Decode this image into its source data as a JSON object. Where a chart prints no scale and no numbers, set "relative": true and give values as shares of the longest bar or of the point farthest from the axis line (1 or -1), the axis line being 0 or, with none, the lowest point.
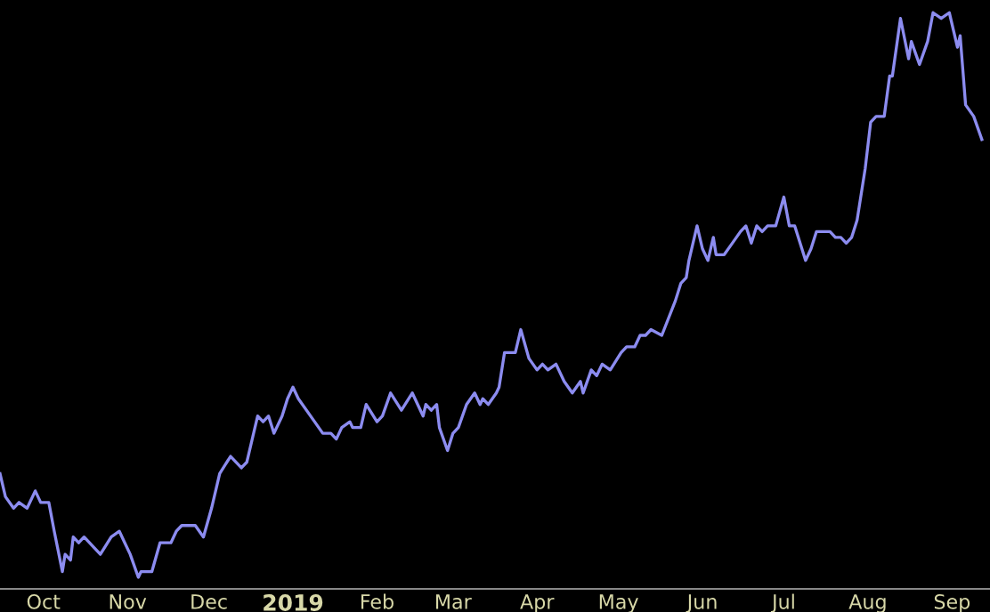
{
  "chart_data": {
    "type": "line",
    "relative": true,
    "grid": false,
    "legend": false,
    "xlim": [
      "2018-09-15",
      "2019-09-15"
    ],
    "xticks": [
      {
        "value": "2018-10-01",
        "label": "Oct"
      },
      {
        "value": "2018-11-01",
        "label": "Nov"
      },
      {
        "value": "2018-12-01",
        "label": "Dec"
      },
      {
        "value": "2019-01-01",
        "label": "2019"
      },
      {
        "value": "2019-02-01",
        "label": "Feb"
      },
      {
        "value": "2019-03-01",
        "label": "Mar"
      },
      {
        "value": "2019-04-01",
        "label": "Apr"
      },
      {
        "value": "2019-05-01",
        "label": "May"
      },
      {
        "value": "2019-06-01",
        "label": "Jun"
      },
      {
        "value": "2019-07-01",
        "label": "Jul"
      },
      {
        "value": "2019-08-01",
        "label": "Aug"
      },
      {
        "value": "2019-09-01",
        "label": "Sep"
      }
    ],
    "x": [
      "2018-09-15",
      "2018-09-17",
      "2018-09-20",
      "2018-09-22",
      "2018-09-25",
      "2018-09-28",
      "2018-09-30",
      "2018-10-03",
      "2018-10-05",
      "2018-10-08",
      "2018-10-09",
      "2018-10-11",
      "2018-10-12",
      "2018-10-14",
      "2018-10-16",
      "2018-10-20",
      "2018-10-22",
      "2018-10-26",
      "2018-10-29",
      "2018-10-31",
      "2018-11-02",
      "2018-11-05",
      "2018-11-06",
      "2018-11-10",
      "2018-11-13",
      "2018-11-17",
      "2018-11-19",
      "2018-11-21",
      "2018-11-26",
      "2018-11-29",
      "2018-12-02",
      "2018-12-05",
      "2018-12-09",
      "2018-12-13",
      "2018-12-15",
      "2018-12-19",
      "2018-12-21",
      "2018-12-23",
      "2018-12-25",
      "2018-12-28",
      "2018-12-30",
      "2019-01-01",
      "2019-01-03",
      "2019-01-09",
      "2019-01-12",
      "2019-01-15",
      "2019-01-17",
      "2019-01-19",
      "2019-01-22",
      "2019-01-23",
      "2019-01-26",
      "2019-01-28",
      "2019-02-01",
      "2019-02-03",
      "2019-02-06",
      "2019-02-10",
      "2019-02-14",
      "2019-02-18",
      "2019-02-19",
      "2019-02-21",
      "2019-02-23",
      "2019-02-24",
      "2019-02-27",
      "2019-03-01",
      "2019-03-03",
      "2019-03-06",
      "2019-03-09",
      "2019-03-11",
      "2019-03-12",
      "2019-03-14",
      "2019-03-17",
      "2019-03-18",
      "2019-03-20",
      "2019-03-24",
      "2019-03-26",
      "2019-03-29",
      "2019-04-01",
      "2019-04-03",
      "2019-04-05",
      "2019-04-08",
      "2019-04-11",
      "2019-04-14",
      "2019-04-17",
      "2019-04-18",
      "2019-04-21",
      "2019-04-23",
      "2019-04-25",
      "2019-04-28",
      "2019-05-02",
      "2019-05-04",
      "2019-05-07",
      "2019-05-09",
      "2019-05-11",
      "2019-05-13",
      "2019-05-17",
      "2019-05-22",
      "2019-05-24",
      "2019-05-26",
      "2019-05-27",
      "2019-05-30",
      "2019-06-01",
      "2019-06-03",
      "2019-06-05",
      "2019-06-06",
      "2019-06-09",
      "2019-06-12",
      "2019-06-15",
      "2019-06-17",
      "2019-06-19",
      "2019-06-21",
      "2019-06-23",
      "2019-06-25",
      "2019-06-28",
      "2019-07-01",
      "2019-07-03",
      "2019-07-05",
      "2019-07-09",
      "2019-07-11",
      "2019-07-13",
      "2019-07-16",
      "2019-07-18",
      "2019-07-20",
      "2019-07-22",
      "2019-07-24",
      "2019-07-26",
      "2019-07-28",
      "2019-07-31",
      "2019-08-02",
      "2019-08-04",
      "2019-08-07",
      "2019-08-09",
      "2019-08-10",
      "2019-08-13",
      "2019-08-16",
      "2019-08-17",
      "2019-08-20",
      "2019-08-23",
      "2019-08-25",
      "2019-08-28",
      "2019-08-31",
      "2019-09-03",
      "2019-09-04",
      "2019-09-06",
      "2019-09-09",
      "2019-09-12"
    ],
    "series": [
      {
        "color": "#8c8cf0",
        "values": [
          0.2,
          0.16,
          0.14,
          0.15,
          0.14,
          0.17,
          0.15,
          0.15,
          0.1,
          0.03,
          0.06,
          0.05,
          0.09,
          0.08,
          0.09,
          0.07,
          0.06,
          0.09,
          0.1,
          0.08,
          0.06,
          0.02,
          0.03,
          0.03,
          0.08,
          0.08,
          0.1,
          0.11,
          0.11,
          0.09,
          0.14,
          0.2,
          0.23,
          0.21,
          0.22,
          0.3,
          0.29,
          0.3,
          0.27,
          0.3,
          0.33,
          0.35,
          0.33,
          0.29,
          0.27,
          0.27,
          0.26,
          0.28,
          0.29,
          0.28,
          0.28,
          0.32,
          0.29,
          0.3,
          0.34,
          0.31,
          0.34,
          0.3,
          0.32,
          0.31,
          0.32,
          0.28,
          0.24,
          0.27,
          0.28,
          0.32,
          0.34,
          0.32,
          0.33,
          0.32,
          0.34,
          0.35,
          0.41,
          0.41,
          0.45,
          0.4,
          0.38,
          0.39,
          0.38,
          0.39,
          0.36,
          0.34,
          0.36,
          0.34,
          0.38,
          0.37,
          0.39,
          0.38,
          0.41,
          0.42,
          0.42,
          0.44,
          0.44,
          0.45,
          0.44,
          0.5,
          0.53,
          0.54,
          0.57,
          0.63,
          0.59,
          0.57,
          0.61,
          0.58,
          0.58,
          0.6,
          0.62,
          0.63,
          0.6,
          0.63,
          0.62,
          0.63,
          0.63,
          0.68,
          0.63,
          0.63,
          0.57,
          0.59,
          0.62,
          0.62,
          0.62,
          0.61,
          0.61,
          0.6,
          0.61,
          0.64,
          0.73,
          0.81,
          0.82,
          0.82,
          0.89,
          0.89,
          0.99,
          0.92,
          0.95,
          0.91,
          0.95,
          1.0,
          0.99,
          1.0,
          0.94,
          0.96,
          0.84,
          0.82,
          0.78
        ]
      }
    ]
  }
}
